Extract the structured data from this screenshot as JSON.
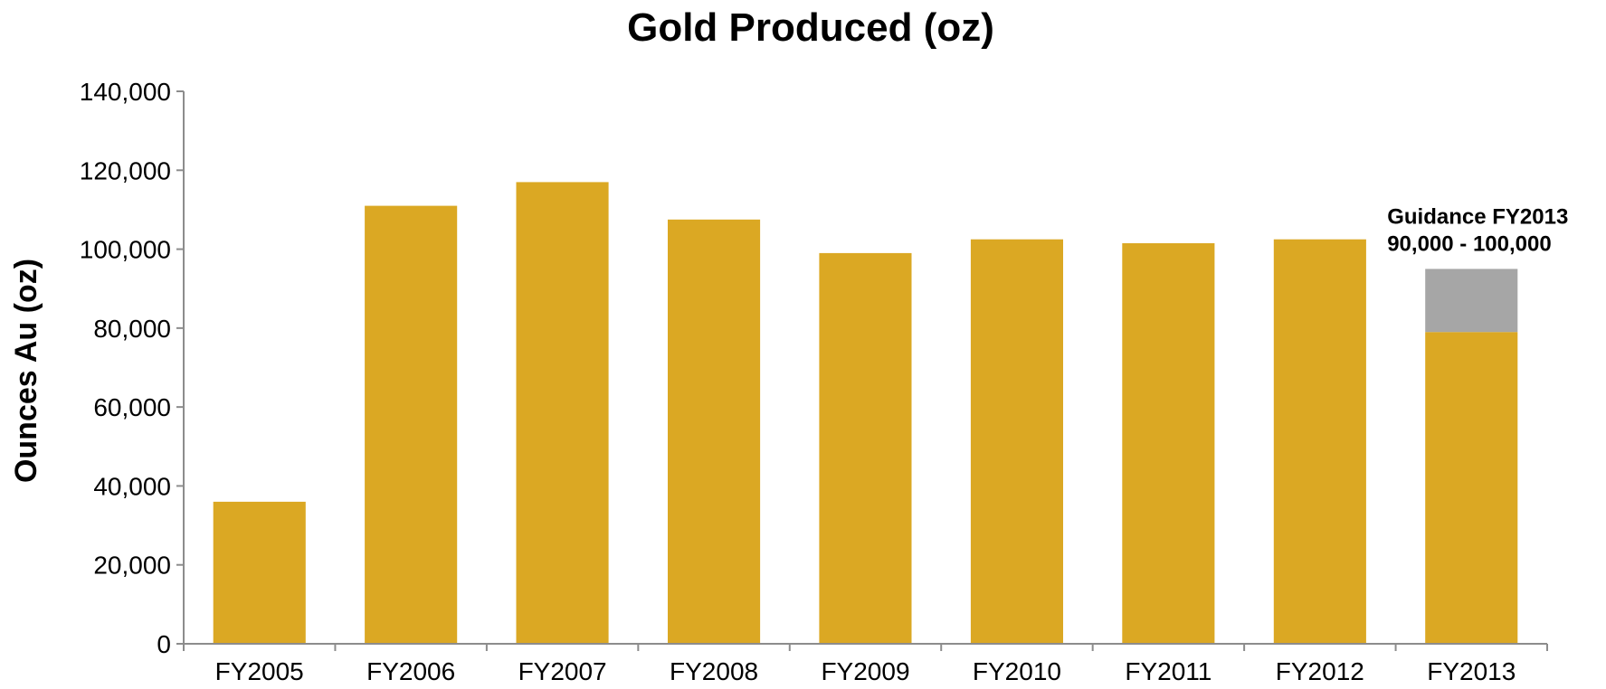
{
  "chart_data": {
    "type": "bar",
    "title": "Gold Produced (oz)",
    "xlabel": "",
    "ylabel": "Ounces Au (oz)",
    "ylim": [
      0,
      140000
    ],
    "yticks": [
      0,
      20000,
      40000,
      60000,
      80000,
      100000,
      120000,
      140000
    ],
    "ytick_labels": [
      "0",
      "20,000",
      "40,000",
      "60,000",
      "80,000",
      "100,000",
      "120,000",
      "140,000"
    ],
    "grid": false,
    "legend": "none",
    "categories": [
      "FY2005",
      "FY2006",
      "FY2007",
      "FY2008",
      "FY2009",
      "FY2010",
      "FY2011",
      "FY2012",
      "FY2013"
    ],
    "series": [
      {
        "values": [
          36000,
          111000,
          117000,
          107500,
          99000,
          102500,
          101500,
          102500,
          79000
        ],
        "color": "#DBA823"
      },
      {
        "values": [
          0,
          0,
          0,
          0,
          0,
          0,
          0,
          0,
          16000
        ],
        "color": "#A6A6A6"
      }
    ],
    "stacked": true,
    "annotations": [
      {
        "category": "FY2013",
        "lines": [
          "Guidance FY2013",
          "90,000 - 100,000"
        ]
      }
    ]
  }
}
